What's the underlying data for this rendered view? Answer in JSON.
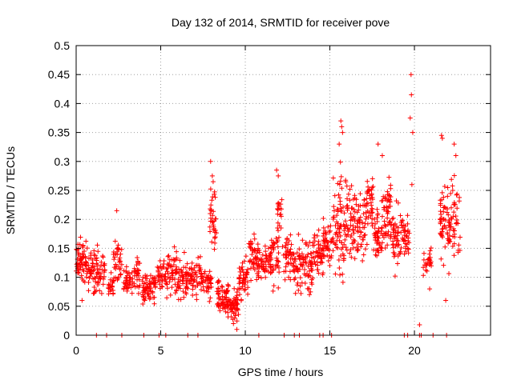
{
  "chart_data": {
    "type": "scatter",
    "title": "Day 132 of 2014, SRMTID for receiver pove",
    "xlabel": "GPS time / hours",
    "ylabel": "SRMTID / TECUs",
    "xlim": [
      0,
      24.5
    ],
    "ylim": [
      0,
      0.5
    ],
    "x_ticks": [
      0,
      5,
      10,
      15,
      20
    ],
    "x_tick_labels": [
      "0",
      "5",
      "10",
      "15",
      "20"
    ],
    "y_ticks": [
      0,
      0.05,
      0.1,
      0.15,
      0.2,
      0.25,
      0.3,
      0.35,
      0.4,
      0.45,
      0.5
    ],
    "y_tick_labels": [
      "0",
      "0.05",
      "0.1",
      "0.15",
      "0.2",
      "0.25",
      "0.3",
      "0.35",
      "0.4",
      "0.45",
      "0.5"
    ],
    "grid": true,
    "marker": "plus",
    "series": [
      {
        "name": "SRMTID",
        "color": "#ff0000",
        "clusters": [
          {
            "t0": 0.0,
            "t1": 0.6,
            "lo": 0.08,
            "hi": 0.18,
            "n": 60
          },
          {
            "t0": 0.6,
            "t1": 1.3,
            "lo": 0.06,
            "hi": 0.165,
            "n": 60
          },
          {
            "t0": 1.3,
            "t1": 1.7,
            "lo": 0.06,
            "hi": 0.16,
            "n": 25
          },
          {
            "t0": 1.9,
            "t1": 2.2,
            "lo": 0.06,
            "hi": 0.12,
            "n": 20
          },
          {
            "t0": 2.2,
            "t1": 2.7,
            "lo": 0.07,
            "hi": 0.18,
            "n": 35
          },
          {
            "t0": 2.8,
            "t1": 3.4,
            "lo": 0.06,
            "hi": 0.13,
            "n": 35
          },
          {
            "t0": 3.4,
            "t1": 3.8,
            "lo": 0.06,
            "hi": 0.15,
            "n": 30
          },
          {
            "t0": 3.9,
            "t1": 4.7,
            "lo": 0.045,
            "hi": 0.12,
            "n": 70
          },
          {
            "t0": 4.8,
            "t1": 5.3,
            "lo": 0.06,
            "hi": 0.15,
            "n": 35
          },
          {
            "t0": 5.3,
            "t1": 6.0,
            "lo": 0.06,
            "hi": 0.16,
            "n": 55
          },
          {
            "t0": 6.0,
            "t1": 6.6,
            "lo": 0.04,
            "hi": 0.15,
            "n": 45
          },
          {
            "t0": 6.6,
            "t1": 7.4,
            "lo": 0.05,
            "hi": 0.15,
            "n": 55
          },
          {
            "t0": 7.4,
            "t1": 8.0,
            "lo": 0.05,
            "hi": 0.13,
            "n": 40
          },
          {
            "t0": 7.9,
            "t1": 8.3,
            "lo": 0.12,
            "hi": 0.28,
            "n": 35
          },
          {
            "t0": 8.3,
            "t1": 9.0,
            "lo": 0.02,
            "hi": 0.11,
            "n": 70
          },
          {
            "t0": 9.0,
            "t1": 9.6,
            "lo": 0.01,
            "hi": 0.09,
            "n": 50
          },
          {
            "t0": 9.6,
            "t1": 10.2,
            "lo": 0.05,
            "hi": 0.15,
            "n": 45
          },
          {
            "t0": 10.2,
            "t1": 10.7,
            "lo": 0.08,
            "hi": 0.19,
            "n": 40
          },
          {
            "t0": 10.7,
            "t1": 11.4,
            "lo": 0.08,
            "hi": 0.17,
            "n": 50
          },
          {
            "t0": 11.4,
            "t1": 12.0,
            "lo": 0.06,
            "hi": 0.21,
            "n": 50
          },
          {
            "t0": 11.9,
            "t1": 12.2,
            "lo": 0.15,
            "hi": 0.27,
            "n": 20
          },
          {
            "t0": 12.2,
            "t1": 12.8,
            "lo": 0.08,
            "hi": 0.2,
            "n": 40
          },
          {
            "t0": 12.8,
            "t1": 13.4,
            "lo": 0.06,
            "hi": 0.18,
            "n": 45
          },
          {
            "t0": 13.4,
            "t1": 14.0,
            "lo": 0.05,
            "hi": 0.2,
            "n": 50
          },
          {
            "t0": 14.0,
            "t1": 14.6,
            "lo": 0.08,
            "hi": 0.2,
            "n": 45
          },
          {
            "t0": 14.6,
            "t1": 15.2,
            "lo": 0.1,
            "hi": 0.22,
            "n": 45
          },
          {
            "t0": 15.2,
            "t1": 15.8,
            "lo": 0.06,
            "hi": 0.32,
            "n": 60
          },
          {
            "t0": 15.8,
            "t1": 16.4,
            "lo": 0.08,
            "hi": 0.3,
            "n": 55
          },
          {
            "t0": 16.4,
            "t1": 17.0,
            "lo": 0.1,
            "hi": 0.27,
            "n": 50
          },
          {
            "t0": 17.0,
            "t1": 17.6,
            "lo": 0.13,
            "hi": 0.3,
            "n": 50
          },
          {
            "t0": 17.6,
            "t1": 18.1,
            "lo": 0.1,
            "hi": 0.25,
            "n": 45
          },
          {
            "t0": 18.1,
            "t1": 18.7,
            "lo": 0.12,
            "hi": 0.3,
            "n": 55
          },
          {
            "t0": 18.7,
            "t1": 19.3,
            "lo": 0.08,
            "hi": 0.26,
            "n": 50
          },
          {
            "t0": 19.3,
            "t1": 19.7,
            "lo": 0.12,
            "hi": 0.22,
            "n": 30
          },
          {
            "t0": 20.5,
            "t1": 21.0,
            "lo": 0.09,
            "hi": 0.16,
            "n": 25
          },
          {
            "t0": 21.5,
            "t1": 22.0,
            "lo": 0.08,
            "hi": 0.3,
            "n": 45
          },
          {
            "t0": 22.0,
            "t1": 22.7,
            "lo": 0.07,
            "hi": 0.31,
            "n": 55
          }
        ],
        "points": [
          {
            "x": 7.95,
            "y": 0.3
          },
          {
            "x": 8.05,
            "y": 0.275
          },
          {
            "x": 8.1,
            "y": 0.265
          },
          {
            "x": 2.4,
            "y": 0.215
          },
          {
            "x": 11.85,
            "y": 0.285
          },
          {
            "x": 11.95,
            "y": 0.275
          },
          {
            "x": 15.65,
            "y": 0.37
          },
          {
            "x": 15.7,
            "y": 0.36
          },
          {
            "x": 15.75,
            "y": 0.35
          },
          {
            "x": 15.55,
            "y": 0.33
          },
          {
            "x": 17.85,
            "y": 0.33
          },
          {
            "x": 18.1,
            "y": 0.31
          },
          {
            "x": 19.8,
            "y": 0.45
          },
          {
            "x": 19.82,
            "y": 0.415
          },
          {
            "x": 19.75,
            "y": 0.375
          },
          {
            "x": 19.9,
            "y": 0.35
          },
          {
            "x": 19.85,
            "y": 0.26
          },
          {
            "x": 20.3,
            "y": 0.018
          },
          {
            "x": 21.6,
            "y": 0.345
          },
          {
            "x": 21.65,
            "y": 0.34
          },
          {
            "x": 22.35,
            "y": 0.33
          },
          {
            "x": 22.45,
            "y": 0.31
          },
          {
            "x": 9.5,
            "y": 0.01
          },
          {
            "x": 9.3,
            "y": 0.02
          },
          {
            "x": 21.85,
            "y": 0.06
          },
          {
            "x": 20.9,
            "y": 0.08
          },
          {
            "x": 0.35,
            "y": 0.06
          }
        ],
        "zero_points_x": [
          1.2,
          1.8,
          2.7,
          4.0,
          4.9,
          5.3,
          6.6,
          7.2,
          10.8,
          12.3,
          12.9,
          13.2,
          14.4,
          14.6,
          15.1,
          19.4,
          19.6,
          20.3,
          20.4,
          21.1,
          21.9
        ]
      }
    ]
  }
}
